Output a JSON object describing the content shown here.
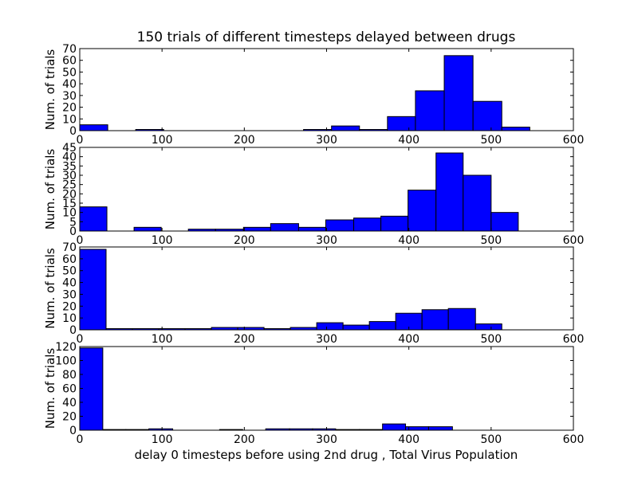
{
  "figure": {
    "title": "150 trials of different timesteps delayed between drugs",
    "xlabel": "delay 0 timesteps before using 2nd drug , Total Virus Population",
    "bar_color": "#0000ff"
  },
  "chart_data": [
    {
      "type": "bar",
      "ylabel": "Num. of trials",
      "xlim": [
        0,
        600
      ],
      "ylim": [
        0,
        70
      ],
      "xticks": [
        0,
        100,
        200,
        300,
        400,
        500,
        600
      ],
      "yticks": [
        0,
        10,
        20,
        30,
        40,
        50,
        60,
        70
      ],
      "bins": [
        {
          "x0": 0,
          "x1": 34,
          "value": 5
        },
        {
          "x0": 68,
          "x1": 102,
          "value": 1
        },
        {
          "x0": 272,
          "x1": 306,
          "value": 1
        },
        {
          "x0": 306,
          "x1": 340,
          "value": 4
        },
        {
          "x0": 340,
          "x1": 374,
          "value": 1
        },
        {
          "x0": 374,
          "x1": 408,
          "value": 12
        },
        {
          "x0": 408,
          "x1": 443,
          "value": 34
        },
        {
          "x0": 443,
          "x1": 478,
          "value": 64
        },
        {
          "x0": 478,
          "x1": 513,
          "value": 25
        },
        {
          "x0": 513,
          "x1": 547,
          "value": 3
        }
      ]
    },
    {
      "type": "bar",
      "ylabel": "Num. of trials",
      "xlim": [
        0,
        600
      ],
      "ylim": [
        0,
        45
      ],
      "xticks": [
        0,
        100,
        200,
        300,
        400,
        500,
        600
      ],
      "yticks": [
        0,
        5,
        10,
        15,
        20,
        25,
        30,
        35,
        40,
        45
      ],
      "bins": [
        {
          "x0": 0,
          "x1": 33,
          "value": 13
        },
        {
          "x0": 66,
          "x1": 99,
          "value": 2
        },
        {
          "x0": 132,
          "x1": 165,
          "value": 1
        },
        {
          "x0": 165,
          "x1": 199,
          "value": 1
        },
        {
          "x0": 199,
          "x1": 232,
          "value": 2
        },
        {
          "x0": 232,
          "x1": 266,
          "value": 4
        },
        {
          "x0": 266,
          "x1": 299,
          "value": 2
        },
        {
          "x0": 299,
          "x1": 333,
          "value": 6
        },
        {
          "x0": 333,
          "x1": 366,
          "value": 7
        },
        {
          "x0": 366,
          "x1": 399,
          "value": 8
        },
        {
          "x0": 399,
          "x1": 433,
          "value": 22
        },
        {
          "x0": 433,
          "x1": 466,
          "value": 42
        },
        {
          "x0": 466,
          "x1": 500,
          "value": 30
        },
        {
          "x0": 500,
          "x1": 533,
          "value": 10
        }
      ]
    },
    {
      "type": "bar",
      "ylabel": "Num. of trials",
      "xlim": [
        0,
        600
      ],
      "ylim": [
        0,
        70
      ],
      "xticks": [
        0,
        100,
        200,
        300,
        400,
        500,
        600
      ],
      "yticks": [
        0,
        10,
        20,
        30,
        40,
        50,
        60,
        70
      ],
      "bins": [
        {
          "x0": 0,
          "x1": 32,
          "value": 68
        },
        {
          "x0": 32,
          "x1": 64,
          "value": 1
        },
        {
          "x0": 64,
          "x1": 96,
          "value": 1
        },
        {
          "x0": 96,
          "x1": 128,
          "value": 1
        },
        {
          "x0": 128,
          "x1": 160,
          "value": 1
        },
        {
          "x0": 160,
          "x1": 192,
          "value": 2
        },
        {
          "x0": 192,
          "x1": 224,
          "value": 2
        },
        {
          "x0": 224,
          "x1": 256,
          "value": 1
        },
        {
          "x0": 256,
          "x1": 288,
          "value": 2
        },
        {
          "x0": 288,
          "x1": 320,
          "value": 6
        },
        {
          "x0": 320,
          "x1": 352,
          "value": 4
        },
        {
          "x0": 352,
          "x1": 384,
          "value": 7
        },
        {
          "x0": 384,
          "x1": 416,
          "value": 14
        },
        {
          "x0": 416,
          "x1": 448,
          "value": 17
        },
        {
          "x0": 448,
          "x1": 481,
          "value": 18
        },
        {
          "x0": 481,
          "x1": 513,
          "value": 5
        }
      ]
    },
    {
      "type": "bar",
      "ylabel": "Num. of trials",
      "xlim": [
        0,
        600
      ],
      "ylim": [
        0,
        120
      ],
      "xticks": [
        0,
        100,
        200,
        300,
        400,
        500,
        600
      ],
      "yticks": [
        0,
        20,
        40,
        60,
        80,
        100,
        120
      ],
      "bins": [
        {
          "x0": 0,
          "x1": 28,
          "value": 118
        },
        {
          "x0": 28,
          "x1": 56,
          "value": 1
        },
        {
          "x0": 56,
          "x1": 84,
          "value": 1
        },
        {
          "x0": 84,
          "x1": 113,
          "value": 2
        },
        {
          "x0": 170,
          "x1": 198,
          "value": 1
        },
        {
          "x0": 226,
          "x1": 255,
          "value": 2
        },
        {
          "x0": 255,
          "x1": 283,
          "value": 2
        },
        {
          "x0": 283,
          "x1": 311,
          "value": 2
        },
        {
          "x0": 311,
          "x1": 340,
          "value": 1
        },
        {
          "x0": 340,
          "x1": 368,
          "value": 1
        },
        {
          "x0": 368,
          "x1": 396,
          "value": 9
        },
        {
          "x0": 396,
          "x1": 424,
          "value": 5
        },
        {
          "x0": 424,
          "x1": 453,
          "value": 5
        }
      ]
    }
  ]
}
